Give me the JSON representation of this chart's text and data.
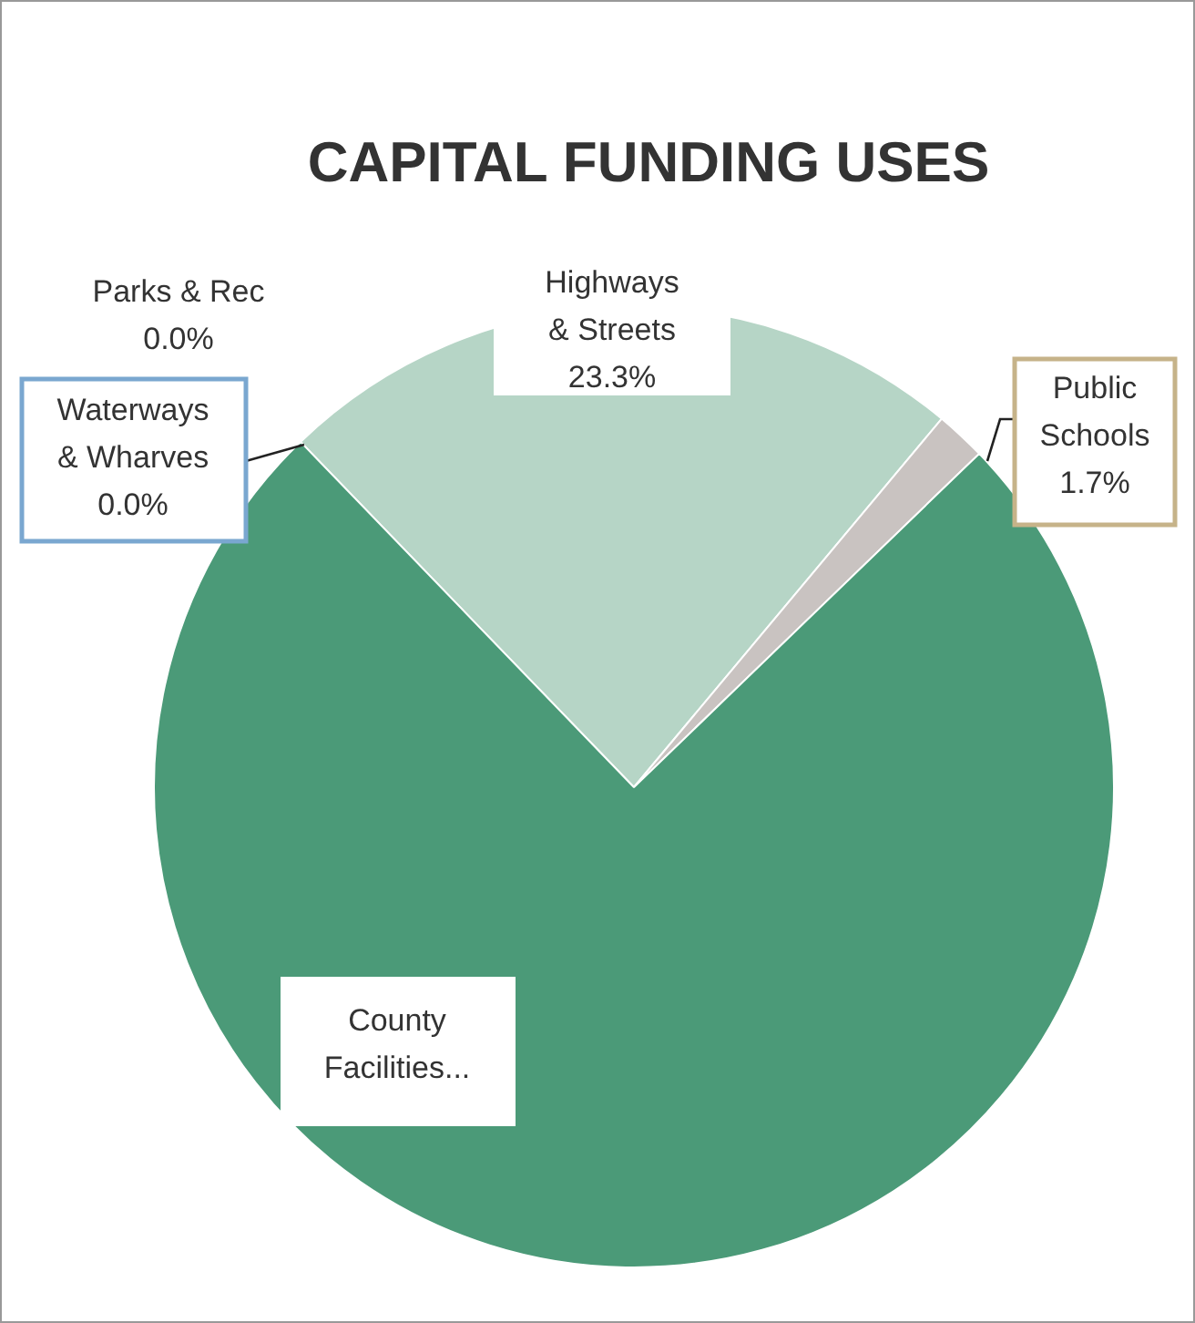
{
  "chart_data": {
    "type": "pie",
    "title": "CAPITAL FUNDING USES",
    "categories": [
      "Parks & Rec",
      "Waterways & Wharves",
      "Highways & Streets",
      "Public Schools",
      "County Facilities..."
    ],
    "values": [
      0.0,
      0.0,
      23.3,
      1.7,
      75.0
    ],
    "value_labels": [
      "0.0%",
      "0.0%",
      "23.3%",
      "1.7%",
      null
    ],
    "colors": [
      "#3f8f6c",
      "#5a9fd0",
      "#b6d5c6",
      "#c9c3c1",
      "#4b9a78"
    ]
  }
}
